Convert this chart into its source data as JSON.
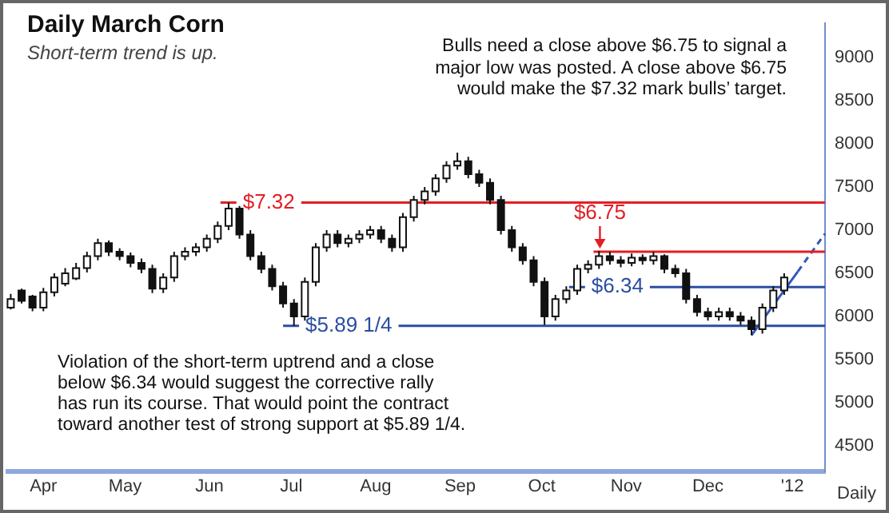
{
  "chart_data": {
    "type": "candlestick",
    "title": "Daily March Corn",
    "subtitle": "Short-term trend is up.",
    "xlabel": "Daily",
    "annotations": [
      "Bulls need a close above $6.75 to signal a\nmajor low was posted. A close above $6.75\nwould make the $7.32 mark bulls’ target.",
      "Violation of the short-term uptrend and a close\nbelow $6.34 would suggest the corrective rally\nhas run its course. That would point the contract\ntoward another test of strong support at $5.89 1/4."
    ],
    "x": [
      "2011-03-20",
      "2011-03-24",
      "2011-03-28",
      "2011-04-01",
      "2011-04-05",
      "2011-04-09",
      "2011-04-13",
      "2011-04-17",
      "2011-04-21",
      "2011-04-25",
      "2011-04-29",
      "2011-05-03",
      "2011-05-07",
      "2011-05-11",
      "2011-05-15",
      "2011-05-19",
      "2011-05-23",
      "2011-05-27",
      "2011-05-31",
      "2011-06-04",
      "2011-06-08",
      "2011-06-12",
      "2011-06-16",
      "2011-06-20",
      "2011-06-24",
      "2011-06-28",
      "2011-07-02",
      "2011-07-06",
      "2011-07-10",
      "2011-07-14",
      "2011-07-18",
      "2011-07-22",
      "2011-07-26",
      "2011-07-30",
      "2011-08-03",
      "2011-08-07",
      "2011-08-11",
      "2011-08-15",
      "2011-08-19",
      "2011-08-23",
      "2011-08-27",
      "2011-08-31",
      "2011-09-04",
      "2011-09-08",
      "2011-09-12",
      "2011-09-16",
      "2011-09-20",
      "2011-09-24",
      "2011-09-28",
      "2011-10-02",
      "2011-10-06",
      "2011-10-10",
      "2011-10-14",
      "2011-10-18",
      "2011-10-22",
      "2011-10-26",
      "2011-10-30",
      "2011-11-03",
      "2011-11-07",
      "2011-11-11",
      "2011-11-15",
      "2011-11-19",
      "2011-11-23",
      "2011-11-27",
      "2011-12-01",
      "2011-12-05",
      "2011-12-09",
      "2011-12-13",
      "2011-12-17",
      "2011-12-21",
      "2011-12-25",
      "2011-12-29"
    ],
    "ohlc": [
      [
        6100,
        6260,
        6080,
        6200
      ],
      [
        6300,
        6320,
        6150,
        6180
      ],
      [
        6230,
        6250,
        6060,
        6100
      ],
      [
        6100,
        6330,
        6060,
        6280
      ],
      [
        6280,
        6500,
        6230,
        6450
      ],
      [
        6380,
        6560,
        6350,
        6500
      ],
      [
        6440,
        6620,
        6420,
        6560
      ],
      [
        6560,
        6750,
        6510,
        6700
      ],
      [
        6700,
        6900,
        6650,
        6850
      ],
      [
        6850,
        6880,
        6700,
        6750
      ],
      [
        6750,
        6790,
        6650,
        6700
      ],
      [
        6700,
        6740,
        6570,
        6620
      ],
      [
        6620,
        6670,
        6500,
        6550
      ],
      [
        6550,
        6600,
        6270,
        6320
      ],
      [
        6320,
        6500,
        6270,
        6450
      ],
      [
        6450,
        6750,
        6400,
        6700
      ],
      [
        6700,
        6800,
        6650,
        6750
      ],
      [
        6750,
        6850,
        6700,
        6800
      ],
      [
        6800,
        6950,
        6750,
        6900
      ],
      [
        6900,
        7100,
        6850,
        7050
      ],
      [
        7050,
        7320,
        7000,
        7250
      ],
      [
        7250,
        7280,
        6900,
        6950
      ],
      [
        6950,
        7000,
        6650,
        6700
      ],
      [
        6700,
        6750,
        6500,
        6550
      ],
      [
        6550,
        6600,
        6300,
        6350
      ],
      [
        6350,
        6400,
        6100,
        6150
      ],
      [
        6150,
        6200,
        5890,
        6000
      ],
      [
        6000,
        6450,
        5950,
        6400
      ],
      [
        6400,
        6850,
        6350,
        6800
      ],
      [
        6800,
        7000,
        6750,
        6950
      ],
      [
        6950,
        7000,
        6800,
        6850
      ],
      [
        6850,
        6950,
        6800,
        6900
      ],
      [
        6900,
        7000,
        6850,
        6950
      ],
      [
        6950,
        7050,
        6900,
        7000
      ],
      [
        7000,
        7050,
        6850,
        6900
      ],
      [
        6900,
        6950,
        6750,
        6800
      ],
      [
        6800,
        7200,
        6750,
        7150
      ],
      [
        7150,
        7400,
        7100,
        7350
      ],
      [
        7350,
        7500,
        7300,
        7450
      ],
      [
        7450,
        7650,
        7400,
        7600
      ],
      [
        7600,
        7800,
        7550,
        7750
      ],
      [
        7750,
        7900,
        7700,
        7800
      ],
      [
        7800,
        7850,
        7600,
        7650
      ],
      [
        7650,
        7700,
        7500,
        7550
      ],
      [
        7550,
        7600,
        7300,
        7350
      ],
      [
        7350,
        7400,
        6950,
        7000
      ],
      [
        7000,
        7050,
        6750,
        6800
      ],
      [
        6800,
        6850,
        6600,
        6650
      ],
      [
        6650,
        6700,
        6350,
        6400
      ],
      [
        6400,
        6450,
        5900,
        6000
      ],
      [
        6000,
        6250,
        5950,
        6200
      ],
      [
        6200,
        6350,
        6150,
        6300
      ],
      [
        6300,
        6600,
        6250,
        6550
      ],
      [
        6550,
        6650,
        6500,
        6600
      ],
      [
        6600,
        6760,
        6550,
        6700
      ],
      [
        6700,
        6750,
        6600,
        6650
      ],
      [
        6650,
        6700,
        6570,
        6620
      ],
      [
        6620,
        6730,
        6580,
        6680
      ],
      [
        6680,
        6720,
        6600,
        6650
      ],
      [
        6650,
        6750,
        6600,
        6700
      ],
      [
        6700,
        6720,
        6500,
        6550
      ],
      [
        6550,
        6600,
        6450,
        6500
      ],
      [
        6500,
        6550,
        6150,
        6200
      ],
      [
        6200,
        6250,
        6000,
        6050
      ],
      [
        6050,
        6100,
        5950,
        6000
      ],
      [
        6000,
        6100,
        5950,
        6050
      ],
      [
        6050,
        6100,
        5950,
        6000
      ],
      [
        6000,
        6050,
        5900,
        5950
      ],
      [
        5950,
        6000,
        5780,
        5850
      ],
      [
        5850,
        6150,
        5800,
        6100
      ],
      [
        6100,
        6350,
        6050,
        6300
      ],
      [
        6300,
        6500,
        6250,
        6450
      ]
    ],
    "series": [
      {
        "type": "line",
        "name": "$7.32",
        "color": "#e31e24",
        "x": [
          "2011-06-05",
          "2012-01-13"
        ],
        "values": [
          7320,
          7320
        ]
      },
      {
        "type": "line",
        "name": "$6.75",
        "color": "#e31e24",
        "x": [
          "2011-10-20",
          "2012-01-13"
        ],
        "values": [
          6750,
          6750
        ]
      },
      {
        "type": "line",
        "name": "$6.34",
        "color": "#2b4ea2",
        "x": [
          "2011-10-11",
          "2012-01-13"
        ],
        "values": [
          6340,
          6340
        ]
      },
      {
        "type": "line",
        "name": "$5.89 1/4",
        "color": "#2b4ea2",
        "x": [
          "2011-06-28",
          "2012-01-13"
        ],
        "values": [
          5890,
          5890
        ]
      },
      {
        "type": "line",
        "color": "#3358b8",
        "x": [
          "2011-12-17",
          "2012-01-03"
        ],
        "values": [
          5780,
          6520
        ]
      },
      {
        "type": "line",
        "color": "#3358b8",
        "line_style": "dashed",
        "x": [
          "2012-01-03",
          "2012-01-13"
        ],
        "values": [
          6520,
          6960
        ]
      }
    ],
    "xlim": [
      "2011-03-19",
      "2012-01-13"
    ],
    "xticks": [
      {
        "value": "2011-04-01",
        "label": "Apr"
      },
      {
        "value": "2011-05-01",
        "label": "May"
      },
      {
        "value": "2011-06-01",
        "label": "Jun"
      },
      {
        "value": "2011-07-01",
        "label": "Jul"
      },
      {
        "value": "2011-08-01",
        "label": "Aug"
      },
      {
        "value": "2011-09-01",
        "label": "Sep"
      },
      {
        "value": "2011-10-01",
        "label": "Oct"
      },
      {
        "value": "2011-11-01",
        "label": "Nov"
      },
      {
        "value": "2011-12-01",
        "label": "Dec"
      },
      {
        "value": "2012-01-01",
        "label": "'12"
      }
    ],
    "ylim": [
      4200,
      9400
    ],
    "yticks": [
      4500,
      5000,
      5500,
      6000,
      6500,
      7000,
      7500,
      8000,
      8500,
      9000
    ]
  }
}
